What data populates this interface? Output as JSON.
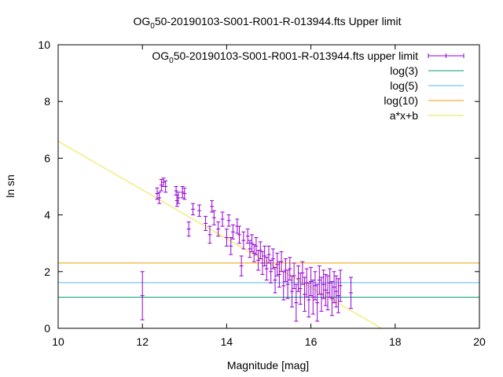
{
  "chart_data": {
    "type": "scatter",
    "title": "OG",
    "title_subscript": "0",
    "title_rest": "50-20190103-S001-R001-R-013944.fts Upper limit",
    "xlabel": "Magnitude [mag]",
    "ylabel": "ln sn",
    "xlim": [
      10,
      20
    ],
    "ylim": [
      0,
      10
    ],
    "xticks": [
      10,
      12,
      14,
      16,
      18,
      20
    ],
    "yticks": [
      0,
      2,
      4,
      6,
      8,
      10
    ],
    "grid": false,
    "legend_position": "top-right",
    "fit_line": {
      "slope": -0.86,
      "intercept": 15.2
    },
    "series": [
      {
        "name": "OG",
        "name_subscript": "0",
        "name_rest": "50-20190103-S001-R001-R-013944.fts upper limit",
        "kind": "errorbars",
        "color": "#9400d3",
        "points": [
          [
            12.0,
            1.15,
            0.85
          ],
          [
            12.35,
            4.75,
            0.2
          ],
          [
            12.4,
            4.6,
            0.2
          ],
          [
            12.45,
            5.05,
            0.2
          ],
          [
            12.5,
            5.15,
            0.15
          ],
          [
            12.55,
            5.0,
            0.2
          ],
          [
            12.8,
            4.85,
            0.15
          ],
          [
            12.82,
            4.5,
            0.2
          ],
          [
            12.85,
            4.6,
            0.2
          ],
          [
            12.95,
            4.8,
            0.2
          ],
          [
            13.0,
            4.75,
            0.2
          ],
          [
            13.1,
            3.5,
            0.25
          ],
          [
            13.2,
            4.2,
            0.2
          ],
          [
            13.35,
            4.15,
            0.2
          ],
          [
            13.5,
            3.7,
            0.25
          ],
          [
            13.6,
            3.3,
            0.3
          ],
          [
            13.65,
            4.3,
            0.2
          ],
          [
            13.7,
            3.9,
            0.25
          ],
          [
            13.8,
            3.5,
            0.25
          ],
          [
            13.9,
            3.85,
            0.25
          ],
          [
            14.0,
            3.2,
            0.3
          ],
          [
            14.05,
            3.8,
            0.2
          ],
          [
            14.1,
            2.9,
            0.3
          ],
          [
            14.15,
            3.4,
            0.25
          ],
          [
            14.25,
            3.6,
            0.25
          ],
          [
            14.3,
            3.3,
            0.3
          ],
          [
            14.35,
            2.2,
            0.35
          ],
          [
            14.4,
            3.1,
            0.3
          ],
          [
            14.5,
            3.25,
            0.25
          ],
          [
            14.55,
            2.8,
            0.3
          ],
          [
            14.6,
            3.0,
            0.3
          ],
          [
            14.65,
            2.65,
            0.3
          ],
          [
            14.7,
            2.9,
            0.3
          ],
          [
            14.75,
            2.4,
            0.35
          ],
          [
            14.8,
            2.75,
            0.3
          ],
          [
            14.85,
            2.3,
            0.4
          ],
          [
            14.9,
            2.55,
            0.35
          ],
          [
            14.95,
            2.1,
            0.4
          ],
          [
            15.0,
            2.6,
            0.3
          ],
          [
            15.05,
            2.0,
            0.4
          ],
          [
            15.1,
            2.45,
            0.35
          ],
          [
            15.15,
            1.7,
            0.45
          ],
          [
            15.2,
            2.25,
            0.4
          ],
          [
            15.25,
            1.9,
            0.45
          ],
          [
            15.3,
            2.35,
            0.35
          ],
          [
            15.35,
            1.5,
            0.5
          ],
          [
            15.4,
            2.05,
            0.4
          ],
          [
            15.45,
            1.55,
            0.5
          ],
          [
            15.5,
            2.1,
            0.4
          ],
          [
            15.55,
            1.3,
            0.55
          ],
          [
            15.6,
            1.85,
            0.45
          ],
          [
            15.65,
            0.9,
            0.65
          ],
          [
            15.7,
            1.75,
            0.45
          ],
          [
            15.75,
            1.4,
            0.55
          ],
          [
            15.8,
            1.95,
            0.4
          ],
          [
            15.85,
            1.2,
            0.6
          ],
          [
            15.9,
            1.6,
            0.5
          ],
          [
            15.95,
            1.0,
            0.6
          ],
          [
            16.0,
            1.65,
            0.5
          ],
          [
            16.05,
            1.1,
            0.6
          ],
          [
            16.1,
            1.5,
            0.5
          ],
          [
            16.15,
            0.9,
            0.65
          ],
          [
            16.2,
            1.7,
            0.5
          ],
          [
            16.25,
            1.2,
            0.6
          ],
          [
            16.3,
            1.55,
            0.5
          ],
          [
            16.35,
            1.35,
            0.55
          ],
          [
            16.4,
            1.25,
            0.6
          ],
          [
            16.45,
            1.6,
            0.5
          ],
          [
            16.5,
            1.05,
            0.6
          ],
          [
            16.55,
            1.45,
            0.55
          ],
          [
            16.6,
            1.3,
            0.55
          ],
          [
            16.65,
            1.15,
            0.6
          ],
          [
            16.7,
            1.5,
            0.55
          ],
          [
            16.95,
            1.25,
            0.55
          ]
        ]
      },
      {
        "name": "log(3)",
        "kind": "hline",
        "value": 1.0986,
        "color": "#009e73"
      },
      {
        "name": "log(5)",
        "kind": "hline",
        "value": 1.6094,
        "color": "#56b4e9"
      },
      {
        "name": "log(10)",
        "kind": "hline",
        "value": 2.3026,
        "color": "#e69f00"
      },
      {
        "name": "a*x+b",
        "kind": "fit",
        "color": "#f0e442"
      }
    ]
  }
}
